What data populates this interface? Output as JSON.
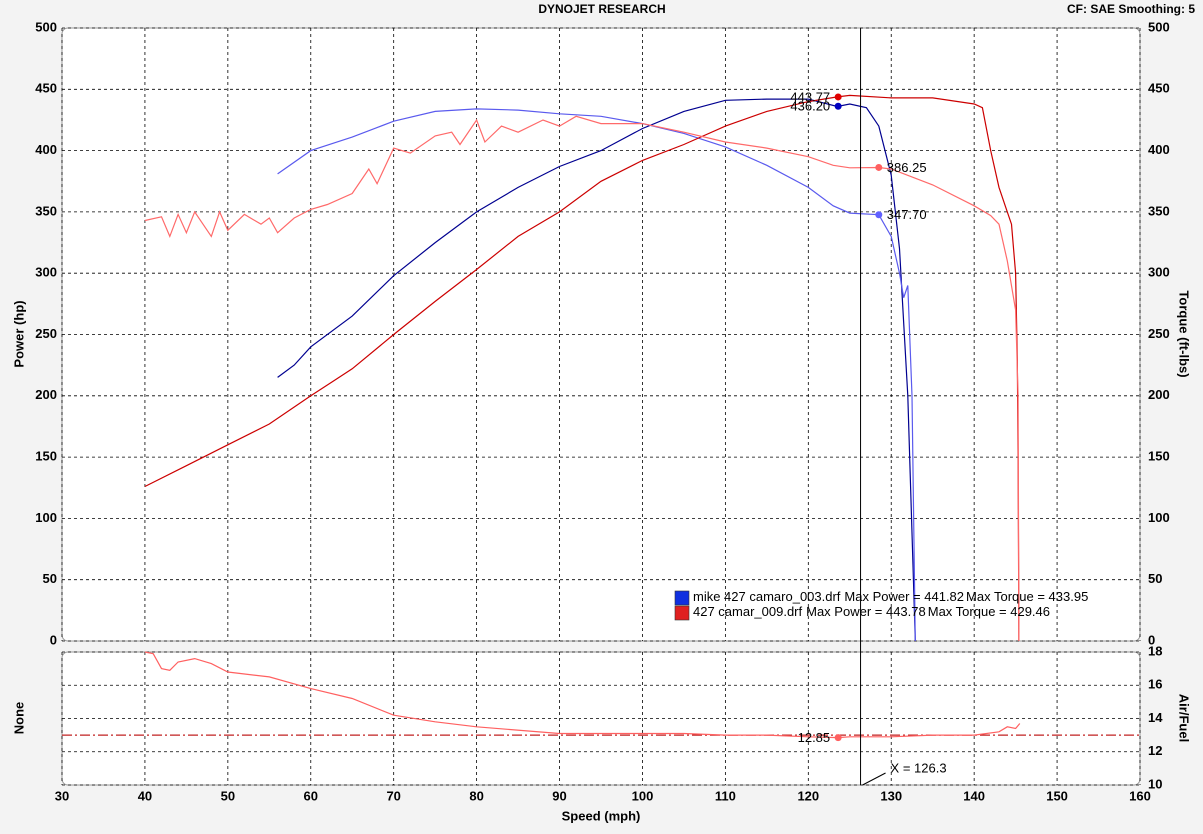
{
  "chart_data": [
    {
      "type": "line",
      "title": "DYNOJET RESEARCH",
      "subtitle": "CF: SAE  Smoothing: 5",
      "y_label": "Power (hp)",
      "y2_label": "Torque (ft-lbs)",
      "xlim": [
        30,
        160
      ],
      "ylim": [
        0,
        500
      ],
      "yticks": [
        0,
        50,
        100,
        150,
        200,
        250,
        300,
        350,
        400,
        450,
        500
      ],
      "y2lim": [
        0,
        500
      ],
      "y2ticks": [
        0,
        50,
        100,
        150,
        200,
        250,
        300,
        350,
        400,
        450,
        500
      ],
      "grid": true,
      "cursor": {
        "value": 126.3,
        "label": "X = 126.3"
      },
      "runs": [
        {
          "name": "mike 427 camaro_003.drf",
          "color": "#1030e0",
          "max_power": {
            "value": 441.82,
            "label": "Max Power = 441.82"
          },
          "max_torque": {
            "value": 433.95,
            "label": "Max Torque = 433.95"
          }
        },
        {
          "name": "427 camar_009.drf",
          "color": "#e02020",
          "max_power": {
            "value": 443.78,
            "label": "Max Power = 443.78"
          },
          "max_torque": {
            "value": 429.46,
            "label": "Max Torque = 429.46"
          }
        }
      ],
      "series": [
        {
          "color": "#000090",
          "x": [
            56,
            58,
            60,
            65,
            70,
            75,
            80,
            85,
            90,
            95,
            100,
            105,
            110,
            115,
            120,
            123.5,
            125,
            127,
            128.5,
            130,
            131,
            132,
            132.9
          ],
          "values": [
            215,
            225,
            240,
            265,
            298,
            325,
            350,
            370,
            387,
            400,
            418,
            432,
            441,
            442,
            442,
            436,
            438,
            435,
            420,
            380,
            320,
            200,
            0
          ]
        },
        {
          "color": "#5a5aee",
          "axis": "y2",
          "x": [
            56,
            60,
            65,
            70,
            75,
            80,
            85,
            90,
            95,
            100,
            105,
            110,
            115,
            120,
            123,
            125,
            128.5,
            130,
            131,
            131.5,
            132,
            132.5,
            132.9
          ],
          "values": [
            381,
            400,
            411,
            424,
            432,
            434,
            433,
            430,
            428,
            422,
            414,
            403,
            388,
            370,
            355,
            349,
            347.7,
            330,
            300,
            280,
            290,
            200,
            0
          ]
        },
        {
          "color": "#cc0000",
          "x": [
            40,
            45,
            50,
            55,
            60,
            65,
            70,
            75,
            80,
            85,
            90,
            95,
            100,
            105,
            110,
            115,
            120,
            123.5,
            125,
            130,
            135,
            140,
            141,
            142,
            143,
            144,
            144.5,
            145,
            145.2,
            145.3,
            145.4
          ],
          "values": [
            126,
            143,
            160,
            177,
            200,
            222,
            250,
            277,
            303,
            330,
            350,
            375,
            392,
            405,
            420,
            432,
            440,
            443.8,
            445,
            443,
            443,
            438,
            435,
            400,
            370,
            350,
            340,
            300,
            230,
            150,
            0
          ]
        },
        {
          "color": "#ff6a6a",
          "axis": "y2",
          "x": [
            40,
            42,
            43,
            44,
            45,
            46,
            48,
            49,
            50,
            52,
            54,
            55,
            56,
            58,
            60,
            62,
            65,
            67,
            68,
            70,
            72,
            75,
            77,
            78,
            80,
            81,
            83,
            85,
            88,
            90,
            92,
            95,
            100,
            105,
            110,
            115,
            120,
            123,
            125,
            128.5,
            130,
            135,
            140,
            142,
            143,
            144,
            145,
            145.3,
            145.4
          ],
          "values": [
            343,
            346,
            330,
            348,
            333,
            350,
            330,
            350,
            335,
            348,
            340,
            345,
            333,
            345,
            352,
            356,
            365,
            385,
            373,
            402,
            398,
            412,
            415,
            405,
            425,
            407,
            420,
            415,
            425,
            420,
            428,
            422,
            422,
            415,
            407,
            402,
            395,
            388,
            386,
            386.25,
            385,
            372,
            355,
            347,
            340,
            310,
            270,
            200,
            0
          ]
        }
      ],
      "annotations": [
        {
          "x": 123.6,
          "y": 443.77,
          "color": "#e00000"
        },
        {
          "x": 123.6,
          "y": 436.2,
          "label": "436.20",
          "color": "#0000c0"
        },
        {
          "x": 128.5,
          "y": 386.25,
          "color": "#ff6060"
        },
        {
          "x": 128.5,
          "y": 347.7,
          "label": "347.70",
          "color": "#6060ff"
        }
      ]
    },
    {
      "type": "line",
      "x_label": "Speed (mph)",
      "y_label": "None",
      "y2_label": "Air/Fuel",
      "xlim": [
        30,
        160
      ],
      "xticks": [
        30,
        40,
        50,
        60,
        70,
        80,
        90,
        100,
        110,
        120,
        130,
        140,
        150,
        160
      ],
      "y2lim": [
        10,
        18
      ],
      "y2ticks": [
        10,
        12,
        14,
        16,
        18
      ],
      "grid": true,
      "reference": 13,
      "series": [
        {
          "color": "#ff6060",
          "axis": "y2",
          "x": [
            40,
            41,
            42,
            43,
            44,
            46,
            48,
            50,
            55,
            60,
            65,
            70,
            75,
            80,
            90,
            95,
            100,
            105,
            110,
            115,
            120,
            123.5,
            125,
            130,
            135,
            140,
            143,
            144,
            145,
            145.5
          ],
          "values": [
            18,
            17.9,
            17,
            16.9,
            17.4,
            17.6,
            17.3,
            16.8,
            16.5,
            15.8,
            15.2,
            14.2,
            13.8,
            13.5,
            13.1,
            13.1,
            13.1,
            13.1,
            13,
            13,
            12.9,
            12.85,
            12.9,
            12.9,
            13,
            13,
            13.2,
            13.5,
            13.4,
            13.7
          ]
        }
      ],
      "annotations": [
        {
          "x": 123.6,
          "y": 12.85,
          "color": "#ff6060"
        }
      ]
    }
  ]
}
